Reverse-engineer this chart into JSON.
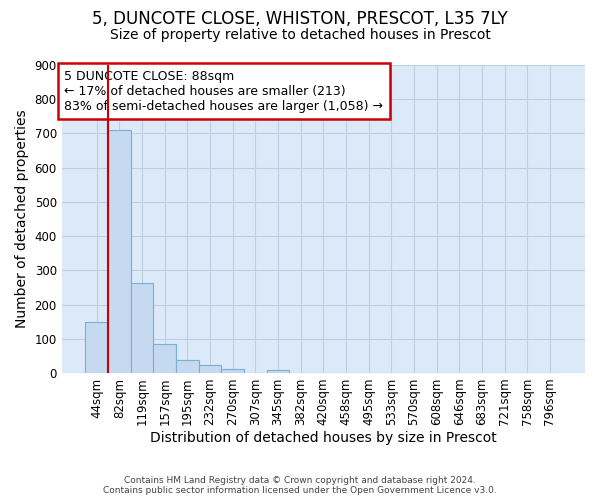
{
  "title": "5, DUNCOTE CLOSE, WHISTON, PRESCOT, L35 7LY",
  "subtitle": "Size of property relative to detached houses in Prescot",
  "xlabel": "Distribution of detached houses by size in Prescot",
  "ylabel": "Number of detached properties",
  "bar_labels": [
    "44sqm",
    "82sqm",
    "119sqm",
    "157sqm",
    "195sqm",
    "232sqm",
    "270sqm",
    "307sqm",
    "345sqm",
    "382sqm",
    "420sqm",
    "458sqm",
    "495sqm",
    "533sqm",
    "570sqm",
    "608sqm",
    "646sqm",
    "683sqm",
    "721sqm",
    "758sqm",
    "796sqm"
  ],
  "bar_values": [
    148,
    710,
    263,
    85,
    37,
    23,
    12,
    0,
    10,
    0,
    0,
    0,
    0,
    0,
    0,
    0,
    0,
    0,
    0,
    0,
    0
  ],
  "bar_color": "#c5d9f1",
  "bar_edge_color": "#7aafd4",
  "ylim": [
    0,
    900
  ],
  "yticks": [
    0,
    100,
    200,
    300,
    400,
    500,
    600,
    700,
    800,
    900
  ],
  "vline_color": "#cc0000",
  "annotation_text_line1": "5 DUNCOTE CLOSE: 88sqm",
  "annotation_text_line2": "← 17% of detached houses are smaller (213)",
  "annotation_text_line3": "83% of semi-detached houses are larger (1,058) →",
  "annotation_box_color": "#cc0000",
  "footer_line1": "Contains HM Land Registry data © Crown copyright and database right 2024.",
  "footer_line2": "Contains public sector information licensed under the Open Government Licence v3.0.",
  "bg_color": "#dce9f8",
  "grid_color": "#c0cfe0",
  "title_fontsize": 12,
  "subtitle_fontsize": 10,
  "axis_label_fontsize": 10,
  "tick_fontsize": 8.5,
  "annotation_fontsize": 9
}
